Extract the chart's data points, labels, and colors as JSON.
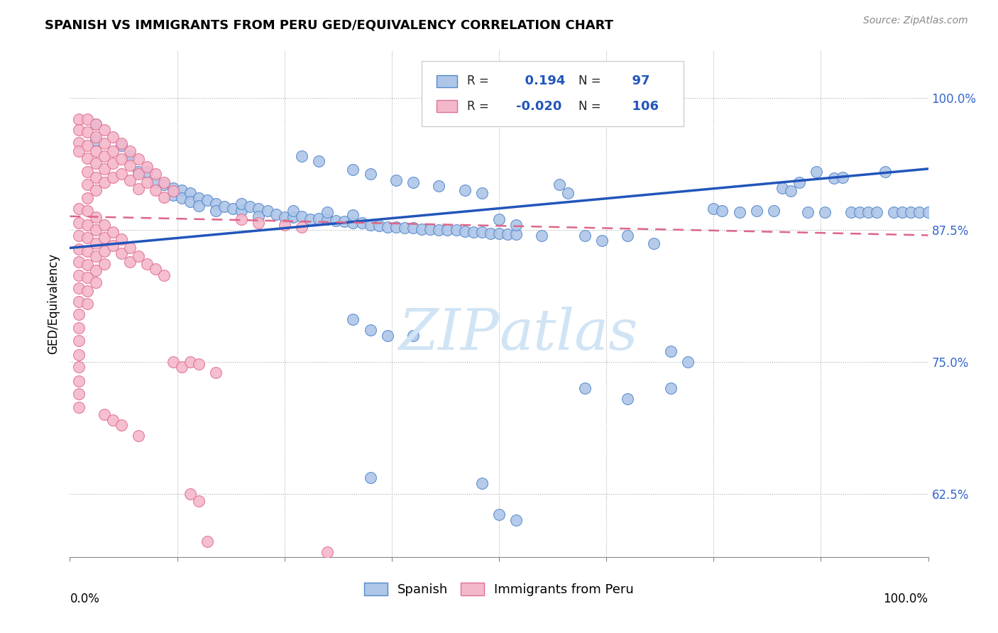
{
  "title": "SPANISH VS IMMIGRANTS FROM PERU GED/EQUIVALENCY CORRELATION CHART",
  "source": "Source: ZipAtlas.com",
  "ylabel": "GED/Equivalency",
  "yticks": [
    0.625,
    0.75,
    0.875,
    1.0
  ],
  "ytick_labels": [
    "62.5%",
    "75.0%",
    "87.5%",
    "100.0%"
  ],
  "xrange": [
    0.0,
    1.0
  ],
  "yrange": [
    0.565,
    1.045
  ],
  "legend_label1": "Spanish",
  "legend_label2": "Immigrants from Peru",
  "R1": 0.194,
  "N1": 97,
  "R2": -0.02,
  "N2": 106,
  "color_blue_fill": "#aec6e8",
  "color_blue_edge": "#5588cc",
  "color_pink_fill": "#f4b8cb",
  "color_pink_edge": "#e07090",
  "color_blue_line": "#2255bb",
  "color_pink_line": "#dd6688",
  "watermark_color": "#d0e4f5",
  "blue_line_x0": 0.0,
  "blue_line_y0": 0.858,
  "blue_line_x1": 1.0,
  "blue_line_y1": 0.933,
  "pink_line_x0": 0.0,
  "pink_line_y0": 0.888,
  "pink_line_x1": 1.0,
  "pink_line_y1": 0.87,
  "blue_points": [
    [
      0.03,
      0.975
    ],
    [
      0.03,
      0.96
    ],
    [
      0.06,
      0.955
    ],
    [
      0.07,
      0.945
    ],
    [
      0.08,
      0.93
    ],
    [
      0.09,
      0.93
    ],
    [
      0.1,
      0.92
    ],
    [
      0.11,
      0.918
    ],
    [
      0.12,
      0.915
    ],
    [
      0.12,
      0.908
    ],
    [
      0.13,
      0.913
    ],
    [
      0.13,
      0.905
    ],
    [
      0.14,
      0.91
    ],
    [
      0.14,
      0.902
    ],
    [
      0.15,
      0.905
    ],
    [
      0.15,
      0.898
    ],
    [
      0.16,
      0.903
    ],
    [
      0.17,
      0.9
    ],
    [
      0.17,
      0.893
    ],
    [
      0.18,
      0.897
    ],
    [
      0.19,
      0.895
    ],
    [
      0.2,
      0.893
    ],
    [
      0.2,
      0.9
    ],
    [
      0.21,
      0.897
    ],
    [
      0.22,
      0.895
    ],
    [
      0.22,
      0.888
    ],
    [
      0.23,
      0.893
    ],
    [
      0.24,
      0.89
    ],
    [
      0.25,
      0.887
    ],
    [
      0.26,
      0.887
    ],
    [
      0.26,
      0.893
    ],
    [
      0.27,
      0.888
    ],
    [
      0.28,
      0.885
    ],
    [
      0.29,
      0.886
    ],
    [
      0.3,
      0.885
    ],
    [
      0.3,
      0.892
    ],
    [
      0.31,
      0.884
    ],
    [
      0.32,
      0.883
    ],
    [
      0.33,
      0.882
    ],
    [
      0.33,
      0.889
    ],
    [
      0.34,
      0.882
    ],
    [
      0.35,
      0.88
    ],
    [
      0.36,
      0.879
    ],
    [
      0.37,
      0.878
    ],
    [
      0.38,
      0.878
    ],
    [
      0.39,
      0.877
    ],
    [
      0.4,
      0.877
    ],
    [
      0.41,
      0.876
    ],
    [
      0.42,
      0.876
    ],
    [
      0.43,
      0.875
    ],
    [
      0.44,
      0.875
    ],
    [
      0.45,
      0.875
    ],
    [
      0.46,
      0.874
    ],
    [
      0.47,
      0.873
    ],
    [
      0.48,
      0.873
    ],
    [
      0.49,
      0.872
    ],
    [
      0.5,
      0.872
    ],
    [
      0.51,
      0.871
    ],
    [
      0.52,
      0.871
    ],
    [
      0.55,
      0.87
    ],
    [
      0.27,
      0.945
    ],
    [
      0.29,
      0.94
    ],
    [
      0.33,
      0.932
    ],
    [
      0.35,
      0.928
    ],
    [
      0.38,
      0.922
    ],
    [
      0.4,
      0.92
    ],
    [
      0.43,
      0.917
    ],
    [
      0.46,
      0.913
    ],
    [
      0.48,
      0.91
    ],
    [
      0.5,
      0.885
    ],
    [
      0.52,
      0.88
    ],
    [
      0.57,
      0.918
    ],
    [
      0.58,
      0.91
    ],
    [
      0.6,
      0.87
    ],
    [
      0.62,
      0.865
    ],
    [
      0.65,
      0.87
    ],
    [
      0.68,
      0.862
    ],
    [
      0.7,
      0.76
    ],
    [
      0.72,
      0.75
    ],
    [
      0.75,
      0.895
    ],
    [
      0.76,
      0.893
    ],
    [
      0.78,
      0.892
    ],
    [
      0.8,
      0.893
    ],
    [
      0.82,
      0.893
    ],
    [
      0.83,
      0.915
    ],
    [
      0.84,
      0.912
    ],
    [
      0.85,
      0.92
    ],
    [
      0.86,
      0.892
    ],
    [
      0.87,
      0.93
    ],
    [
      0.88,
      0.892
    ],
    [
      0.89,
      0.924
    ],
    [
      0.9,
      0.925
    ],
    [
      0.91,
      0.892
    ],
    [
      0.92,
      0.892
    ],
    [
      0.93,
      0.892
    ],
    [
      0.94,
      0.892
    ],
    [
      0.95,
      0.93
    ],
    [
      0.96,
      0.892
    ],
    [
      0.97,
      0.892
    ],
    [
      0.98,
      0.892
    ],
    [
      0.99,
      0.892
    ],
    [
      1.0,
      0.892
    ],
    [
      0.33,
      0.79
    ],
    [
      0.35,
      0.78
    ],
    [
      0.37,
      0.775
    ],
    [
      0.4,
      0.775
    ],
    [
      0.35,
      0.64
    ],
    [
      0.48,
      0.635
    ],
    [
      0.5,
      0.605
    ],
    [
      0.52,
      0.6
    ],
    [
      0.6,
      0.725
    ],
    [
      0.65,
      0.715
    ],
    [
      0.7,
      0.725
    ]
  ],
  "pink_points": [
    [
      0.01,
      0.98
    ],
    [
      0.01,
      0.97
    ],
    [
      0.01,
      0.958
    ],
    [
      0.01,
      0.95
    ],
    [
      0.02,
      0.98
    ],
    [
      0.02,
      0.968
    ],
    [
      0.02,
      0.955
    ],
    [
      0.02,
      0.943
    ],
    [
      0.02,
      0.93
    ],
    [
      0.02,
      0.918
    ],
    [
      0.02,
      0.905
    ],
    [
      0.03,
      0.975
    ],
    [
      0.03,
      0.963
    ],
    [
      0.03,
      0.95
    ],
    [
      0.03,
      0.938
    ],
    [
      0.03,
      0.925
    ],
    [
      0.03,
      0.913
    ],
    [
      0.04,
      0.97
    ],
    [
      0.04,
      0.957
    ],
    [
      0.04,
      0.945
    ],
    [
      0.04,
      0.933
    ],
    [
      0.04,
      0.92
    ],
    [
      0.05,
      0.963
    ],
    [
      0.05,
      0.95
    ],
    [
      0.05,
      0.938
    ],
    [
      0.05,
      0.925
    ],
    [
      0.06,
      0.957
    ],
    [
      0.06,
      0.942
    ],
    [
      0.06,
      0.928
    ],
    [
      0.07,
      0.95
    ],
    [
      0.07,
      0.936
    ],
    [
      0.07,
      0.922
    ],
    [
      0.08,
      0.942
    ],
    [
      0.08,
      0.928
    ],
    [
      0.08,
      0.914
    ],
    [
      0.09,
      0.935
    ],
    [
      0.09,
      0.92
    ],
    [
      0.1,
      0.928
    ],
    [
      0.1,
      0.913
    ],
    [
      0.11,
      0.92
    ],
    [
      0.11,
      0.906
    ],
    [
      0.12,
      0.912
    ],
    [
      0.01,
      0.895
    ],
    [
      0.01,
      0.882
    ],
    [
      0.01,
      0.87
    ],
    [
      0.01,
      0.857
    ],
    [
      0.01,
      0.845
    ],
    [
      0.01,
      0.832
    ],
    [
      0.01,
      0.82
    ],
    [
      0.01,
      0.807
    ],
    [
      0.01,
      0.795
    ],
    [
      0.01,
      0.782
    ],
    [
      0.01,
      0.77
    ],
    [
      0.01,
      0.757
    ],
    [
      0.01,
      0.745
    ],
    [
      0.01,
      0.732
    ],
    [
      0.01,
      0.72
    ],
    [
      0.01,
      0.707
    ],
    [
      0.02,
      0.893
    ],
    [
      0.02,
      0.88
    ],
    [
      0.02,
      0.868
    ],
    [
      0.02,
      0.855
    ],
    [
      0.02,
      0.842
    ],
    [
      0.02,
      0.83
    ],
    [
      0.02,
      0.817
    ],
    [
      0.02,
      0.805
    ],
    [
      0.03,
      0.887
    ],
    [
      0.03,
      0.875
    ],
    [
      0.03,
      0.862
    ],
    [
      0.03,
      0.85
    ],
    [
      0.03,
      0.837
    ],
    [
      0.03,
      0.825
    ],
    [
      0.04,
      0.88
    ],
    [
      0.04,
      0.868
    ],
    [
      0.04,
      0.855
    ],
    [
      0.04,
      0.843
    ],
    [
      0.05,
      0.873
    ],
    [
      0.05,
      0.86
    ],
    [
      0.06,
      0.866
    ],
    [
      0.06,
      0.853
    ],
    [
      0.07,
      0.858
    ],
    [
      0.07,
      0.845
    ],
    [
      0.08,
      0.85
    ],
    [
      0.09,
      0.843
    ],
    [
      0.1,
      0.838
    ],
    [
      0.11,
      0.832
    ],
    [
      0.12,
      0.75
    ],
    [
      0.13,
      0.745
    ],
    [
      0.14,
      0.75
    ],
    [
      0.15,
      0.748
    ],
    [
      0.17,
      0.74
    ],
    [
      0.04,
      0.7
    ],
    [
      0.05,
      0.695
    ],
    [
      0.06,
      0.69
    ],
    [
      0.08,
      0.68
    ],
    [
      0.14,
      0.625
    ],
    [
      0.15,
      0.618
    ],
    [
      0.16,
      0.58
    ],
    [
      0.2,
      0.885
    ],
    [
      0.22,
      0.882
    ],
    [
      0.25,
      0.88
    ],
    [
      0.27,
      0.878
    ],
    [
      0.3,
      0.57
    ]
  ]
}
